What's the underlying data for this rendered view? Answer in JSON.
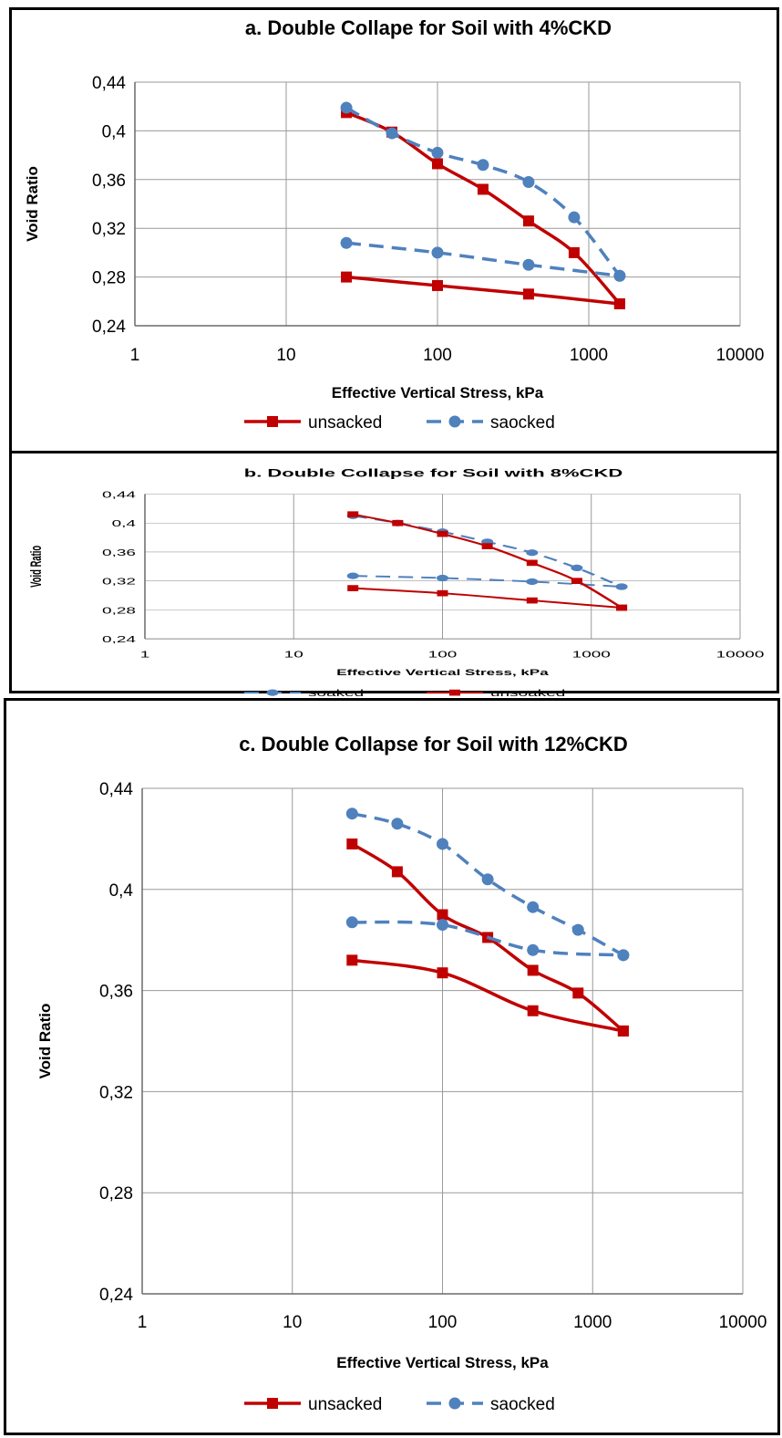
{
  "chart_data": [
    {
      "type": "line",
      "title": "a. Double Collape for Soil with 4%CKD",
      "xlabel": "Effective Vertical Stress, kPa",
      "ylabel": "Void Ratio",
      "xscale": "log",
      "xlim": [
        1,
        10000
      ],
      "ylim": [
        0.24,
        0.44
      ],
      "x_ticks": [
        "1",
        "10",
        "100",
        "1000",
        "10000"
      ],
      "y_ticks": [
        "0,24",
        "0,28",
        "0,32",
        "0,36",
        "0,4",
        "0,44"
      ],
      "grid": true,
      "legend_position": "bottom",
      "series": [
        {
          "name": "unsacked",
          "style": "solid",
          "marker": "square",
          "color": "#c00000",
          "segments": [
            {
              "x": [
                25,
                50,
                100,
                200,
                400,
                800,
                1600
              ],
              "y": [
                0.415,
                0.399,
                0.373,
                0.352,
                0.326,
                0.3,
                0.258
              ]
            },
            {
              "x": [
                25,
                100,
                400,
                1600
              ],
              "y": [
                0.28,
                0.273,
                0.266,
                0.258
              ]
            }
          ]
        },
        {
          "name": "saocked",
          "style": "dashed",
          "marker": "circle",
          "color": "#4f81bd",
          "segments": [
            {
              "x": [
                25,
                50,
                100,
                200,
                400,
                800,
                1600
              ],
              "y": [
                0.419,
                0.398,
                0.382,
                0.372,
                0.358,
                0.329,
                0.281
              ]
            },
            {
              "x": [
                25,
                100,
                400,
                1600
              ],
              "y": [
                0.308,
                0.3,
                0.29,
                0.281
              ]
            }
          ]
        }
      ]
    },
    {
      "type": "line",
      "title": "b. Double Collapse for Soil  with 8%CKD",
      "xlabel": "Effective Vertical Stress, kPa",
      "ylabel": "Void  Ratio",
      "xscale": "log",
      "xlim": [
        1,
        10000
      ],
      "ylim": [
        0.24,
        0.44
      ],
      "x_ticks": [
        "1",
        "10",
        "100",
        "1000",
        "10000"
      ],
      "y_ticks": [
        "0,24",
        "0,28",
        "0,32",
        "0,36",
        "0,4",
        "0,44"
      ],
      "grid": true,
      "legend_position": "bottom",
      "series": [
        {
          "name": "soaked",
          "style": "dashed",
          "marker": "circle",
          "color": "#4f81bd",
          "segments": [
            {
              "x": [
                25,
                50,
                100,
                200,
                400,
                800,
                1600
              ],
              "y": [
                0.41,
                0.4,
                0.388,
                0.374,
                0.359,
                0.338,
                0.312
              ]
            },
            {
              "x": [
                25,
                100,
                400,
                1600
              ],
              "y": [
                0.327,
                0.324,
                0.319,
                0.312
              ]
            }
          ]
        },
        {
          "name": "unsoaked",
          "style": "solid",
          "marker": "square",
          "color": "#c00000",
          "segments": [
            {
              "x": [
                25,
                50,
                100,
                200,
                400,
                800,
                1600
              ],
              "y": [
                0.412,
                0.4,
                0.385,
                0.368,
                0.345,
                0.32,
                0.283
              ]
            },
            {
              "x": [
                25,
                100,
                400,
                1600
              ],
              "y": [
                0.31,
                0.303,
                0.293,
                0.283
              ]
            }
          ]
        }
      ]
    },
    {
      "type": "line",
      "title": "c. Double Collapse for Soil with  12%CKD",
      "xlabel": "Effective Vertical Stress, kPa",
      "ylabel": "Void Ratio",
      "xscale": "log",
      "xlim": [
        1,
        10000
      ],
      "ylim": [
        0.24,
        0.44
      ],
      "x_ticks": [
        "1",
        "10",
        "100",
        "1000",
        "10000"
      ],
      "y_ticks": [
        "0,24",
        "0,28",
        "0,32",
        "0,36",
        "0,4",
        "0,44"
      ],
      "grid": true,
      "legend_position": "bottom",
      "series": [
        {
          "name": "unsacked",
          "style": "solid",
          "marker": "square",
          "color": "#c00000",
          "segments": [
            {
              "x": [
                25,
                50,
                100,
                200,
                400,
                800,
                1600
              ],
              "y": [
                0.418,
                0.407,
                0.39,
                0.381,
                0.368,
                0.359,
                0.344
              ]
            },
            {
              "x": [
                25,
                100,
                400,
                1600
              ],
              "y": [
                0.372,
                0.367,
                0.352,
                0.344
              ]
            }
          ]
        },
        {
          "name": "saocked",
          "style": "dashed",
          "marker": "circle",
          "color": "#4f81bd",
          "segments": [
            {
              "x": [
                25,
                50,
                100,
                200,
                400,
                800,
                1600
              ],
              "y": [
                0.43,
                0.426,
                0.418,
                0.404,
                0.393,
                0.384,
                0.374
              ]
            },
            {
              "x": [
                25,
                100,
                400,
                1600
              ],
              "y": [
                0.387,
                0.386,
                0.376,
                0.374
              ]
            }
          ]
        }
      ]
    }
  ]
}
